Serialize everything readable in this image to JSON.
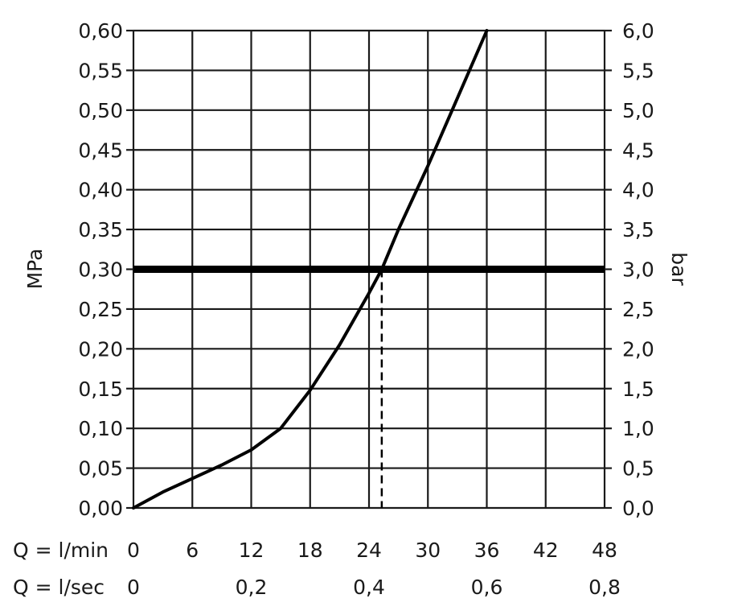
{
  "chart_data": {
    "type": "line",
    "xlabel_min": "Q = l/min",
    "xlabel_sec": "Q = l/sec",
    "ylabel_left": "MPa",
    "ylabel_right": "bar",
    "xlim": [
      0,
      48
    ],
    "ylim": [
      0,
      0.6
    ],
    "grid": true,
    "x_ticks": [
      "0",
      "6",
      "12",
      "18",
      "24",
      "30",
      "36",
      "42",
      "48"
    ],
    "x_ticks_values": [
      0,
      6,
      12,
      18,
      24,
      30,
      36,
      42,
      48
    ],
    "x_ticks_sec": [
      "0",
      "0,2",
      "0,4",
      "0,6",
      "0,8"
    ],
    "x_ticks_sec_values": [
      0,
      12,
      24,
      36,
      48
    ],
    "y_ticks_left": [
      "0,00",
      "0,05",
      "0,10",
      "0,15",
      "0,20",
      "0,25",
      "0,30",
      "0,35",
      "0,40",
      "0,45",
      "0,50",
      "0,55",
      "0,60"
    ],
    "y_ticks_right": [
      "0,0",
      "0,5",
      "1,0",
      "1,5",
      "2,0",
      "2,5",
      "3,0",
      "3,5",
      "4,0",
      "4,5",
      "5,0",
      "5,5",
      "6,0"
    ],
    "y_ticks_values": [
      0,
      0.05,
      0.1,
      0.15,
      0.2,
      0.25,
      0.3,
      0.35,
      0.4,
      0.45,
      0.5,
      0.55,
      0.6
    ],
    "series": [
      {
        "x": [
          0,
          3,
          6,
          9,
          12,
          15,
          18,
          21,
          24,
          25.3,
          27,
          30,
          33,
          36
        ],
        "y": [
          0,
          0.02,
          0.037,
          0.054,
          0.073,
          0.1,
          0.148,
          0.205,
          0.27,
          0.3,
          0.35,
          0.43,
          0.515,
          0.6
        ]
      }
    ],
    "reference_line_y": 0.3,
    "reference_drop_x": 25.3
  }
}
